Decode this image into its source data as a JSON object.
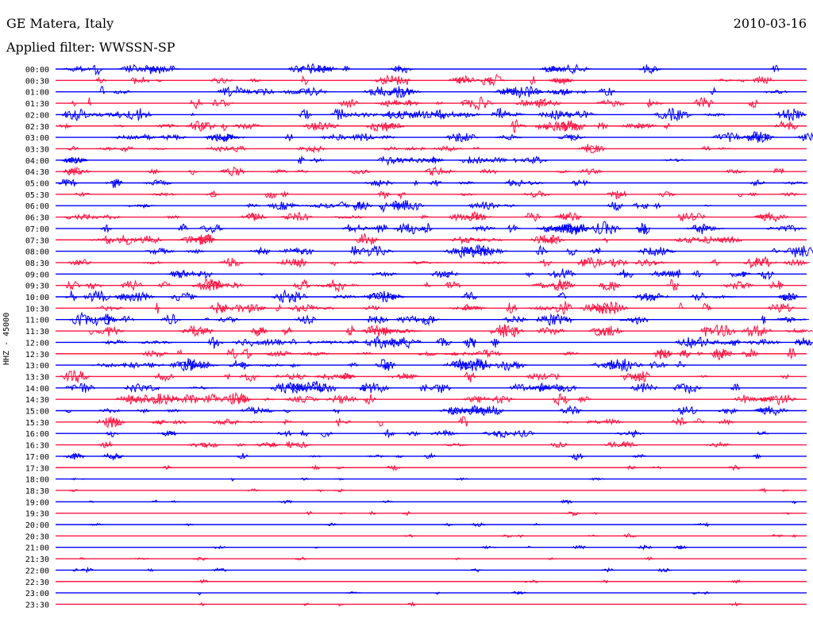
{
  "header": {
    "station": "GE Matera, Italy",
    "date": "2010-03-16",
    "filter": "Applied filter: WWSSN-SP"
  },
  "side_label": "HHZ - 45000",
  "colors": {
    "even_row": "#0000ff",
    "odd_row": "#ff1744",
    "background": "#ffffff"
  },
  "chart_data": {
    "type": "line",
    "title": "GE Matera, Italy",
    "subtitle": "Applied filter: WWSSN-SP",
    "ylabel": "HHZ - 45000",
    "grid": false,
    "row_colors": [
      "#0000ff",
      "#ff1744"
    ],
    "categories": [
      "00:00",
      "00:30",
      "01:00",
      "01:30",
      "02:00",
      "02:30",
      "03:00",
      "03:30",
      "04:00",
      "04:30",
      "05:00",
      "05:30",
      "06:00",
      "06:30",
      "07:00",
      "07:30",
      "08:00",
      "08:30",
      "09:00",
      "09:30",
      "10:00",
      "10:30",
      "11:00",
      "11:30",
      "12:00",
      "12:30",
      "13:00",
      "13:30",
      "14:00",
      "14:30",
      "15:00",
      "15:30",
      "16:00",
      "16:30",
      "17:00",
      "17:30",
      "18:00",
      "18:30",
      "19:00",
      "19:30",
      "20:00",
      "20:30",
      "21:00",
      "21:30",
      "22:00",
      "22:30",
      "23:00",
      "23:30"
    ],
    "activity": [
      0.8,
      0.75,
      0.8,
      0.75,
      0.85,
      0.9,
      0.7,
      0.6,
      0.6,
      0.55,
      0.6,
      0.6,
      0.75,
      0.8,
      0.85,
      0.85,
      0.85,
      0.8,
      0.75,
      0.8,
      0.85,
      0.95,
      0.85,
      0.9,
      0.9,
      0.85,
      0.9,
      0.85,
      0.85,
      0.8,
      0.8,
      0.7,
      0.6,
      0.55,
      0.4,
      0.2,
      0.18,
      0.15,
      0.18,
      0.18,
      0.22,
      0.22,
      0.22,
      0.2,
      0.18,
      0.15,
      0.18,
      0.15
    ]
  }
}
